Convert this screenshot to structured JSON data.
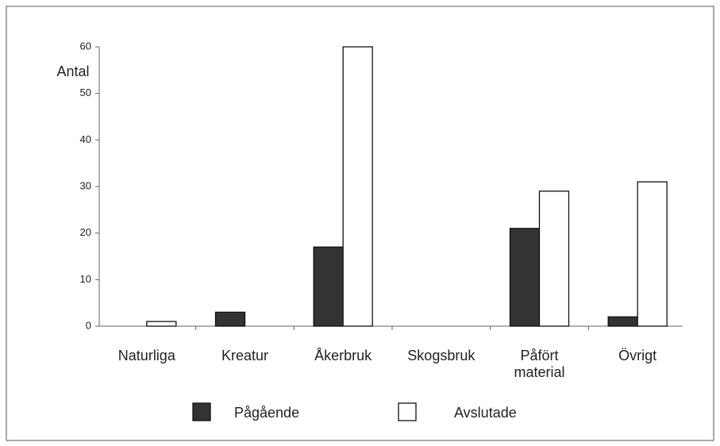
{
  "chart_data": {
    "type": "bar",
    "y_label": "Antal",
    "categories": [
      "Naturliga",
      "Kreatur",
      "Åkerbruk",
      "Skogsbruk",
      "Påfört material",
      "Övrigt"
    ],
    "series": [
      {
        "name": "Pågående",
        "color": "#333333",
        "values": [
          0,
          3,
          17,
          0,
          21,
          2
        ]
      },
      {
        "name": "Avslutade",
        "color": "#ffffff",
        "values": [
          1,
          0,
          60,
          0,
          29,
          31
        ]
      }
    ],
    "ylim": [
      0,
      60
    ],
    "yticks": [
      0,
      10,
      20,
      30,
      40,
      50,
      60
    ],
    "grid": false
  }
}
